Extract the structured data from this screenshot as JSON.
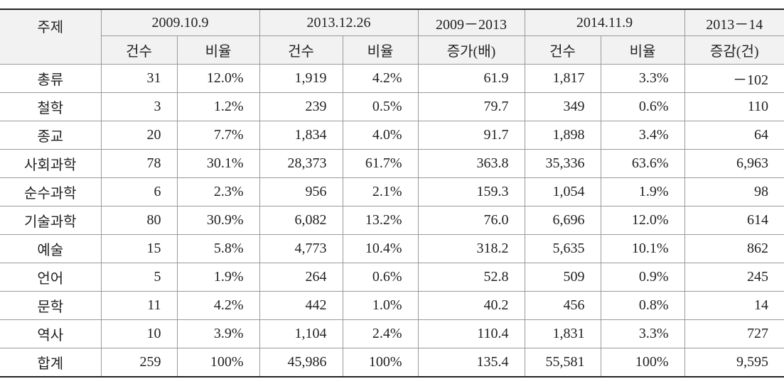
{
  "table": {
    "corner": "주제",
    "groups": [
      "2009.10.9",
      "2013.12.26",
      "2009－2013",
      "2014.11.9",
      "2013－14"
    ],
    "subheaders": [
      "건수",
      "비율",
      "건수",
      "비율",
      "증가(배)",
      "건수",
      "비율",
      "증감(건)"
    ],
    "rows": [
      [
        "총류",
        "31",
        "12.0%",
        "1,919",
        "4.2%",
        "61.9",
        "1,817",
        "3.3%",
        "－102"
      ],
      [
        "철학",
        "3",
        "1.2%",
        "239",
        "0.5%",
        "79.7",
        "349",
        "0.6%",
        "110"
      ],
      [
        "종교",
        "20",
        "7.7%",
        "1,834",
        "4.0%",
        "91.7",
        "1,898",
        "3.4%",
        "64"
      ],
      [
        "사회과학",
        "78",
        "30.1%",
        "28,373",
        "61.7%",
        "363.8",
        "35,336",
        "63.6%",
        "6,963"
      ],
      [
        "순수과학",
        "6",
        "2.3%",
        "956",
        "2.1%",
        "159.3",
        "1,054",
        "1.9%",
        "98"
      ],
      [
        "기술과학",
        "80",
        "30.9%",
        "6,082",
        "13.2%",
        "76.0",
        "6,696",
        "12.0%",
        "614"
      ],
      [
        "예술",
        "15",
        "5.8%",
        "4,773",
        "10.4%",
        "318.2",
        "5,635",
        "10.1%",
        "862"
      ],
      [
        "언어",
        "5",
        "1.9%",
        "264",
        "0.6%",
        "52.8",
        "509",
        "0.9%",
        "245"
      ],
      [
        "문학",
        "11",
        "4.2%",
        "442",
        "1.0%",
        "40.2",
        "456",
        "0.8%",
        "14"
      ],
      [
        "역사",
        "10",
        "3.9%",
        "1,104",
        "2.4%",
        "110.4",
        "1,831",
        "3.3%",
        "727"
      ],
      [
        "합계",
        "259",
        "100%",
        "45,986",
        "100%",
        "135.4",
        "55,581",
        "100%",
        "9,595"
      ]
    ]
  }
}
